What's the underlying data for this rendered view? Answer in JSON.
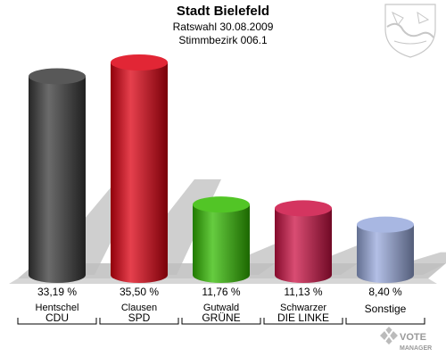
{
  "header": {
    "title": "Stadt Bielefeld",
    "subtitle": "Ratswahl 30.08.2009",
    "subtitle2": "Stimmbezirk 006.1"
  },
  "watermark": {
    "line1": "VOTE",
    "line2": "MANAGER"
  },
  "chart_data": {
    "type": "bar",
    "title": "Stadt Bielefeld",
    "subtitle": "Ratswahl 30.08.2009 / Stimmbezirk 006.1",
    "ylim": [
      0,
      40
    ],
    "grid": false,
    "legend": "none",
    "categories": [
      "CDU",
      "SPD",
      "GRÜNE",
      "DIE LINKE",
      "Sonstige"
    ],
    "candidates": [
      "Hentschel",
      "Clausen",
      "Gutwald",
      "Schwarzer",
      ""
    ],
    "values": [
      33.19,
      35.5,
      11.76,
      11.13,
      8.4
    ],
    "value_labels": [
      "33,19 %",
      "35,50 %",
      "11,76 %",
      "11,13 %",
      "8,40 %"
    ],
    "colors": [
      "#3a3a3a",
      "#dd0011",
      "#33bb00",
      "#cc1144",
      "#99aadd"
    ]
  }
}
